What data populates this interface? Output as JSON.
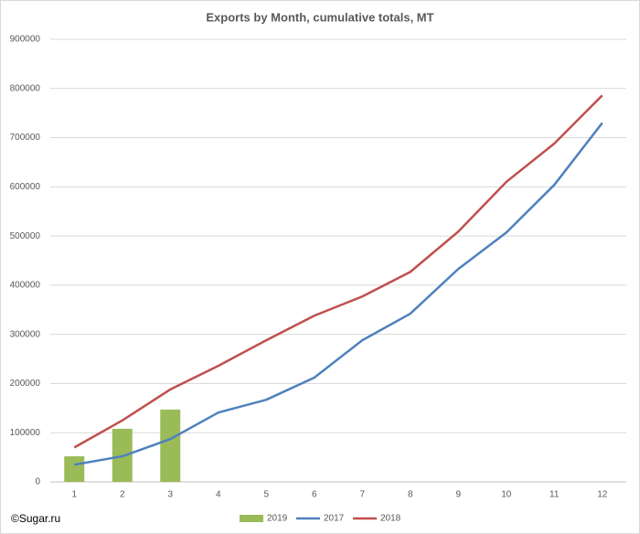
{
  "chart_data": {
    "type": "bar_line",
    "title": "Exports by Month, cumulative totals, MT",
    "source": "©Sugar.ru",
    "categories": [
      "1",
      "2",
      "3",
      "4",
      "5",
      "6",
      "7",
      "8",
      "9",
      "10",
      "11",
      "12"
    ],
    "series": [
      {
        "name": "2019",
        "type": "bar",
        "color": "#9bbb59",
        "values": [
          52000,
          108000,
          147000,
          null,
          null,
          null,
          null,
          null,
          null,
          null,
          null,
          null
        ]
      },
      {
        "name": "2017",
        "type": "line",
        "color": "#4f81bd",
        "values": [
          35000,
          52000,
          87000,
          141000,
          167000,
          212000,
          288000,
          342000,
          433000,
          507000,
          604000,
          730000
        ]
      },
      {
        "name": "2018",
        "type": "line",
        "color": "#c0504d",
        "values": [
          70000,
          125000,
          188000,
          236000,
          288000,
          338000,
          377000,
          427000,
          509000,
          610000,
          688000,
          786000
        ]
      }
    ],
    "ylim": [
      0,
      900000
    ],
    "yticks": [
      0,
      100000,
      200000,
      300000,
      400000,
      500000,
      600000,
      700000,
      800000,
      900000
    ],
    "grid": true,
    "legend": "bottom"
  }
}
